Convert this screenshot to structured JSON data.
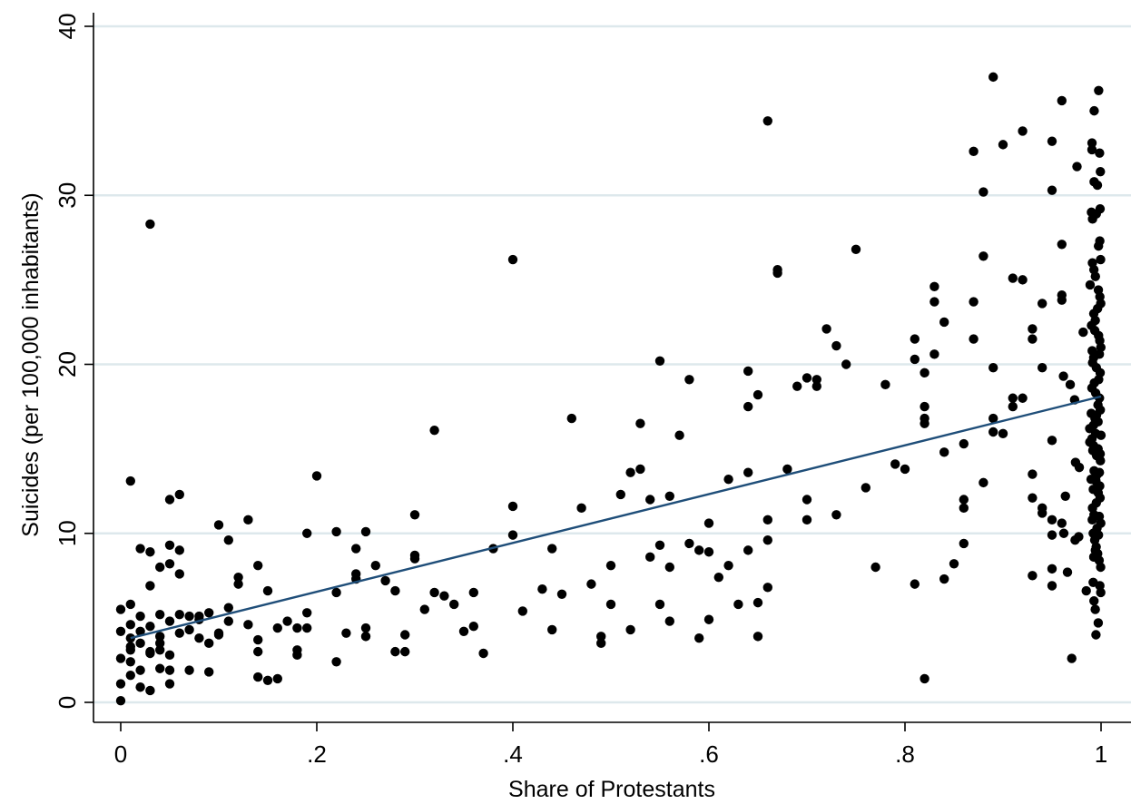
{
  "chart_data": {
    "type": "scatter",
    "title": "",
    "xlabel": "Share of Protestants",
    "ylabel": "Suicides (per 100,000 inhabitants)",
    "xlim": [
      0,
      1
    ],
    "ylim": [
      0,
      40
    ],
    "x_ticks": [
      0,
      0.2,
      0.4,
      0.6,
      0.8,
      1
    ],
    "x_tick_labels": [
      "0",
      ".2",
      ".4",
      ".6",
      ".8",
      "1"
    ],
    "y_ticks": [
      0,
      10,
      20,
      30,
      40
    ],
    "y_tick_labels": [
      "0",
      "10",
      "20",
      "30",
      "40"
    ],
    "grid": "horizontal",
    "colors": {
      "points": "#000000",
      "fit_line": "#1f4e79",
      "grid": "#dde8ec"
    },
    "fit_line": {
      "x": [
        0.01,
        1.0
      ],
      "y": [
        3.8,
        18.1
      ]
    },
    "points": [
      [
        0.0,
        0.1
      ],
      [
        0.0,
        1.1
      ],
      [
        0.0,
        2.6
      ],
      [
        0.0,
        4.2
      ],
      [
        0.0,
        5.5
      ],
      [
        0.01,
        1.6
      ],
      [
        0.01,
        3.1
      ],
      [
        0.01,
        3.8
      ],
      [
        0.01,
        4.6
      ],
      [
        0.01,
        2.4
      ],
      [
        0.01,
        5.8
      ],
      [
        0.01,
        13.1
      ],
      [
        0.01,
        3.3
      ],
      [
        0.02,
        1.9
      ],
      [
        0.02,
        0.9
      ],
      [
        0.02,
        3.5
      ],
      [
        0.02,
        9.1
      ],
      [
        0.02,
        5.1
      ],
      [
        0.02,
        4.2
      ],
      [
        0.03,
        0.7
      ],
      [
        0.03,
        2.9
      ],
      [
        0.03,
        4.5
      ],
      [
        0.03,
        8.9
      ],
      [
        0.03,
        6.9
      ],
      [
        0.03,
        3.0
      ],
      [
        0.03,
        28.3
      ],
      [
        0.04,
        3.1
      ],
      [
        0.04,
        3.5
      ],
      [
        0.04,
        3.9
      ],
      [
        0.04,
        5.2
      ],
      [
        0.04,
        8.0
      ],
      [
        0.04,
        2.0
      ],
      [
        0.05,
        1.1
      ],
      [
        0.05,
        2.8
      ],
      [
        0.05,
        4.8
      ],
      [
        0.05,
        9.3
      ],
      [
        0.05,
        8.2
      ],
      [
        0.05,
        12.0
      ],
      [
        0.05,
        1.9
      ],
      [
        0.06,
        12.3
      ],
      [
        0.06,
        5.2
      ],
      [
        0.06,
        7.6
      ],
      [
        0.06,
        4.1
      ],
      [
        0.06,
        9.0
      ],
      [
        0.07,
        1.9
      ],
      [
        0.07,
        4.3
      ],
      [
        0.07,
        5.1
      ],
      [
        0.08,
        3.8
      ],
      [
        0.08,
        4.9
      ],
      [
        0.08,
        5.1
      ],
      [
        0.09,
        1.8
      ],
      [
        0.09,
        3.5
      ],
      [
        0.09,
        5.3
      ],
      [
        0.1,
        4.0
      ],
      [
        0.1,
        10.5
      ],
      [
        0.1,
        4.1
      ],
      [
        0.11,
        4.8
      ],
      [
        0.11,
        5.6
      ],
      [
        0.11,
        9.6
      ],
      [
        0.12,
        7.0
      ],
      [
        0.12,
        7.4
      ],
      [
        0.13,
        10.8
      ],
      [
        0.13,
        4.6
      ],
      [
        0.14,
        1.5
      ],
      [
        0.14,
        3.7
      ],
      [
        0.14,
        3.0
      ],
      [
        0.14,
        8.1
      ],
      [
        0.15,
        1.3
      ],
      [
        0.15,
        6.6
      ],
      [
        0.16,
        4.4
      ],
      [
        0.16,
        1.4
      ],
      [
        0.17,
        4.8
      ],
      [
        0.18,
        3.1
      ],
      [
        0.18,
        2.8
      ],
      [
        0.18,
        4.4
      ],
      [
        0.19,
        5.3
      ],
      [
        0.19,
        10.0
      ],
      [
        0.19,
        4.4
      ],
      [
        0.2,
        13.4
      ],
      [
        0.22,
        6.5
      ],
      [
        0.22,
        2.4
      ],
      [
        0.22,
        10.1
      ],
      [
        0.23,
        4.1
      ],
      [
        0.24,
        7.6
      ],
      [
        0.24,
        7.3
      ],
      [
        0.24,
        9.1
      ],
      [
        0.25,
        4.4
      ],
      [
        0.25,
        3.9
      ],
      [
        0.25,
        10.1
      ],
      [
        0.26,
        8.1
      ],
      [
        0.27,
        7.2
      ],
      [
        0.28,
        3.0
      ],
      [
        0.28,
        6.6
      ],
      [
        0.29,
        4.0
      ],
      [
        0.29,
        3.0
      ],
      [
        0.3,
        8.5
      ],
      [
        0.3,
        8.7
      ],
      [
        0.3,
        11.1
      ],
      [
        0.31,
        5.5
      ],
      [
        0.32,
        6.5
      ],
      [
        0.32,
        16.1
      ],
      [
        0.33,
        6.3
      ],
      [
        0.34,
        5.8
      ],
      [
        0.35,
        4.2
      ],
      [
        0.36,
        6.5
      ],
      [
        0.36,
        4.5
      ],
      [
        0.37,
        2.9
      ],
      [
        0.38,
        9.1
      ],
      [
        0.4,
        26.2
      ],
      [
        0.4,
        9.9
      ],
      [
        0.4,
        11.6
      ],
      [
        0.41,
        5.4
      ],
      [
        0.43,
        6.7
      ],
      [
        0.44,
        4.3
      ],
      [
        0.44,
        9.1
      ],
      [
        0.45,
        6.4
      ],
      [
        0.46,
        16.8
      ],
      [
        0.47,
        11.5
      ],
      [
        0.48,
        7.0
      ],
      [
        0.49,
        3.9
      ],
      [
        0.49,
        3.5
      ],
      [
        0.5,
        5.8
      ],
      [
        0.5,
        8.1
      ],
      [
        0.51,
        12.3
      ],
      [
        0.52,
        13.6
      ],
      [
        0.52,
        4.3
      ],
      [
        0.53,
        13.8
      ],
      [
        0.53,
        16.5
      ],
      [
        0.54,
        12.0
      ],
      [
        0.54,
        8.6
      ],
      [
        0.55,
        20.2
      ],
      [
        0.55,
        9.3
      ],
      [
        0.55,
        5.8
      ],
      [
        0.56,
        8.0
      ],
      [
        0.56,
        4.8
      ],
      [
        0.56,
        12.2
      ],
      [
        0.57,
        15.8
      ],
      [
        0.58,
        9.4
      ],
      [
        0.58,
        19.1
      ],
      [
        0.59,
        9.0
      ],
      [
        0.59,
        3.8
      ],
      [
        0.6,
        10.6
      ],
      [
        0.6,
        8.9
      ],
      [
        0.6,
        4.9
      ],
      [
        0.61,
        7.4
      ],
      [
        0.62,
        8.1
      ],
      [
        0.62,
        13.2
      ],
      [
        0.63,
        5.8
      ],
      [
        0.64,
        17.5
      ],
      [
        0.64,
        19.6
      ],
      [
        0.64,
        13.6
      ],
      [
        0.64,
        9.0
      ],
      [
        0.65,
        5.9
      ],
      [
        0.65,
        3.9
      ],
      [
        0.65,
        18.2
      ],
      [
        0.66,
        6.8
      ],
      [
        0.66,
        34.4
      ],
      [
        0.66,
        9.6
      ],
      [
        0.66,
        10.8
      ],
      [
        0.67,
        25.6
      ],
      [
        0.67,
        25.4
      ],
      [
        0.68,
        13.8
      ],
      [
        0.69,
        18.7
      ],
      [
        0.7,
        19.2
      ],
      [
        0.7,
        12.0
      ],
      [
        0.7,
        10.8
      ],
      [
        0.71,
        19.1
      ],
      [
        0.71,
        18.7
      ],
      [
        0.72,
        22.1
      ],
      [
        0.73,
        21.1
      ],
      [
        0.73,
        11.1
      ],
      [
        0.74,
        20.0
      ],
      [
        0.75,
        26.8
      ],
      [
        0.76,
        12.7
      ],
      [
        0.77,
        8.0
      ],
      [
        0.78,
        18.8
      ],
      [
        0.79,
        14.1
      ],
      [
        0.8,
        13.8
      ],
      [
        0.81,
        20.3
      ],
      [
        0.81,
        21.5
      ],
      [
        0.81,
        7.0
      ],
      [
        0.82,
        17.5
      ],
      [
        0.82,
        16.5
      ],
      [
        0.82,
        16.8
      ],
      [
        0.82,
        19.5
      ],
      [
        0.82,
        1.4
      ],
      [
        0.83,
        23.7
      ],
      [
        0.83,
        24.6
      ],
      [
        0.83,
        20.6
      ],
      [
        0.84,
        22.5
      ],
      [
        0.84,
        7.3
      ],
      [
        0.84,
        14.8
      ],
      [
        0.85,
        8.2
      ],
      [
        0.86,
        9.4
      ],
      [
        0.86,
        15.3
      ],
      [
        0.86,
        11.5
      ],
      [
        0.86,
        12.0
      ],
      [
        0.87,
        23.7
      ],
      [
        0.87,
        21.5
      ],
      [
        0.87,
        32.6
      ],
      [
        0.88,
        26.4
      ],
      [
        0.88,
        30.2
      ],
      [
        0.88,
        13.0
      ],
      [
        0.89,
        37.0
      ],
      [
        0.89,
        16.8
      ],
      [
        0.89,
        19.8
      ],
      [
        0.89,
        16.0
      ],
      [
        0.9,
        15.9
      ],
      [
        0.9,
        33.0
      ],
      [
        0.91,
        17.5
      ],
      [
        0.91,
        18.0
      ],
      [
        0.91,
        25.1
      ],
      [
        0.92,
        25.0
      ],
      [
        0.92,
        18.0
      ],
      [
        0.92,
        33.8
      ],
      [
        0.93,
        21.5
      ],
      [
        0.93,
        22.1
      ],
      [
        0.93,
        12.1
      ],
      [
        0.93,
        13.5
      ],
      [
        0.93,
        7.5
      ],
      [
        0.94,
        19.8
      ],
      [
        0.94,
        11.5
      ],
      [
        0.94,
        23.6
      ],
      [
        0.94,
        11.2
      ],
      [
        0.95,
        10.8
      ],
      [
        0.95,
        30.3
      ],
      [
        0.95,
        33.2
      ],
      [
        0.95,
        15.5
      ],
      [
        0.95,
        9.9
      ],
      [
        0.95,
        7.9
      ],
      [
        0.95,
        6.9
      ],
      [
        0.96,
        10.6
      ],
      [
        0.96,
        27.1
      ],
      [
        0.96,
        35.6
      ],
      [
        0.96,
        24.1
      ],
      [
        0.96,
        23.8
      ],
      [
        0.97,
        10.0
      ],
      [
        0.97,
        7.7
      ],
      [
        0.97,
        18.8
      ],
      [
        0.97,
        12.2
      ],
      [
        0.97,
        19.3
      ],
      [
        0.98,
        17.9
      ],
      [
        0.98,
        13.9
      ],
      [
        0.98,
        31.7
      ],
      [
        0.98,
        2.6
      ],
      [
        0.98,
        14.2
      ],
      [
        0.98,
        9.6
      ],
      [
        0.98,
        9.8
      ],
      [
        0.99,
        24.7
      ],
      [
        0.99,
        21.9
      ],
      [
        0.99,
        6.6
      ],
      [
        0.99,
        13.2
      ],
      [
        0.99,
        15.4
      ],
      [
        0.99,
        16.2
      ],
      [
        1.0,
        21.0
      ],
      [
        1.0,
        21.4
      ],
      [
        1.0,
        23.3
      ],
      [
        1.0,
        17.1
      ],
      [
        1.0,
        15.2
      ],
      [
        1.0,
        6.5
      ],
      [
        1.0,
        8.0
      ],
      [
        1.0,
        10.6
      ],
      [
        1.0,
        11.8
      ],
      [
        1.0,
        13.5
      ],
      [
        1.0,
        14.3
      ],
      [
        1.0,
        17.6
      ],
      [
        1.0,
        19.1
      ],
      [
        1.0,
        27.3
      ],
      [
        1.0,
        32.5
      ],
      [
        1.0,
        29.2
      ],
      [
        1.0,
        25.6
      ],
      [
        1.0,
        22.6
      ],
      [
        1.0,
        20.8
      ],
      [
        1.0,
        19.5
      ],
      [
        1.0,
        18.3
      ],
      [
        1.0,
        16.4
      ],
      [
        1.0,
        15.8
      ],
      [
        1.0,
        14.9
      ],
      [
        1.0,
        13.1
      ],
      [
        1.0,
        12.4
      ],
      [
        1.0,
        11.1
      ],
      [
        1.0,
        10.3
      ],
      [
        1.0,
        9.6
      ],
      [
        1.0,
        8.8
      ],
      [
        1.0,
        7.1
      ],
      [
        1.0,
        6.0
      ],
      [
        1.0,
        5.5
      ],
      [
        1.0,
        4.7
      ],
      [
        1.0,
        4.0
      ],
      [
        1.0,
        27.0
      ],
      [
        1.0,
        31.4
      ],
      [
        1.0,
        25.2
      ],
      [
        1.0,
        23.0
      ],
      [
        1.0,
        22.0
      ],
      [
        1.0,
        20.4
      ],
      [
        1.0,
        18.9
      ],
      [
        1.0,
        17.3
      ],
      [
        1.0,
        16.8
      ],
      [
        1.0,
        15.6
      ],
      [
        1.0,
        14.6
      ],
      [
        1.0,
        13.7
      ],
      [
        1.0,
        12.8
      ],
      [
        1.0,
        11.5
      ],
      [
        1.0,
        10.0
      ],
      [
        1.0,
        9.2
      ],
      [
        1.0,
        8.4
      ],
      [
        1.0,
        6.9
      ],
      [
        1.0,
        36.2
      ],
      [
        1.0,
        32.7
      ],
      [
        1.0,
        30.8
      ],
      [
        1.0,
        28.9
      ],
      [
        1.0,
        26.2
      ],
      [
        1.0,
        24.0
      ],
      [
        1.0,
        22.3
      ],
      [
        1.0,
        20.1
      ],
      [
        1.0,
        18.6
      ],
      [
        1.0,
        17.0
      ],
      [
        1.0,
        15.9
      ],
      [
        1.0,
        14.7
      ],
      [
        1.0,
        13.3
      ],
      [
        1.0,
        12.1
      ],
      [
        1.0,
        11.0
      ],
      [
        1.0,
        9.9
      ],
      [
        1.0,
        9.0
      ],
      [
        1.0,
        8.6
      ],
      [
        1.0,
        35.0
      ],
      [
        1.0,
        33.1
      ],
      [
        1.0,
        30.6
      ],
      [
        1.0,
        29.0
      ],
      [
        1.0,
        28.6
      ],
      [
        1.0,
        26.0
      ],
      [
        1.0,
        24.4
      ],
      [
        1.0,
        23.6
      ],
      [
        1.0,
        21.7
      ],
      [
        1.0,
        20.6
      ],
      [
        1.0,
        19.8
      ],
      [
        1.0,
        18.0
      ],
      [
        1.0,
        16.6
      ],
      [
        1.0,
        15.0
      ],
      [
        1.0,
        13.6
      ],
      [
        1.0,
        12.6
      ],
      [
        1.0,
        10.8
      ],
      [
        1.0,
        8.6
      ]
    ]
  }
}
